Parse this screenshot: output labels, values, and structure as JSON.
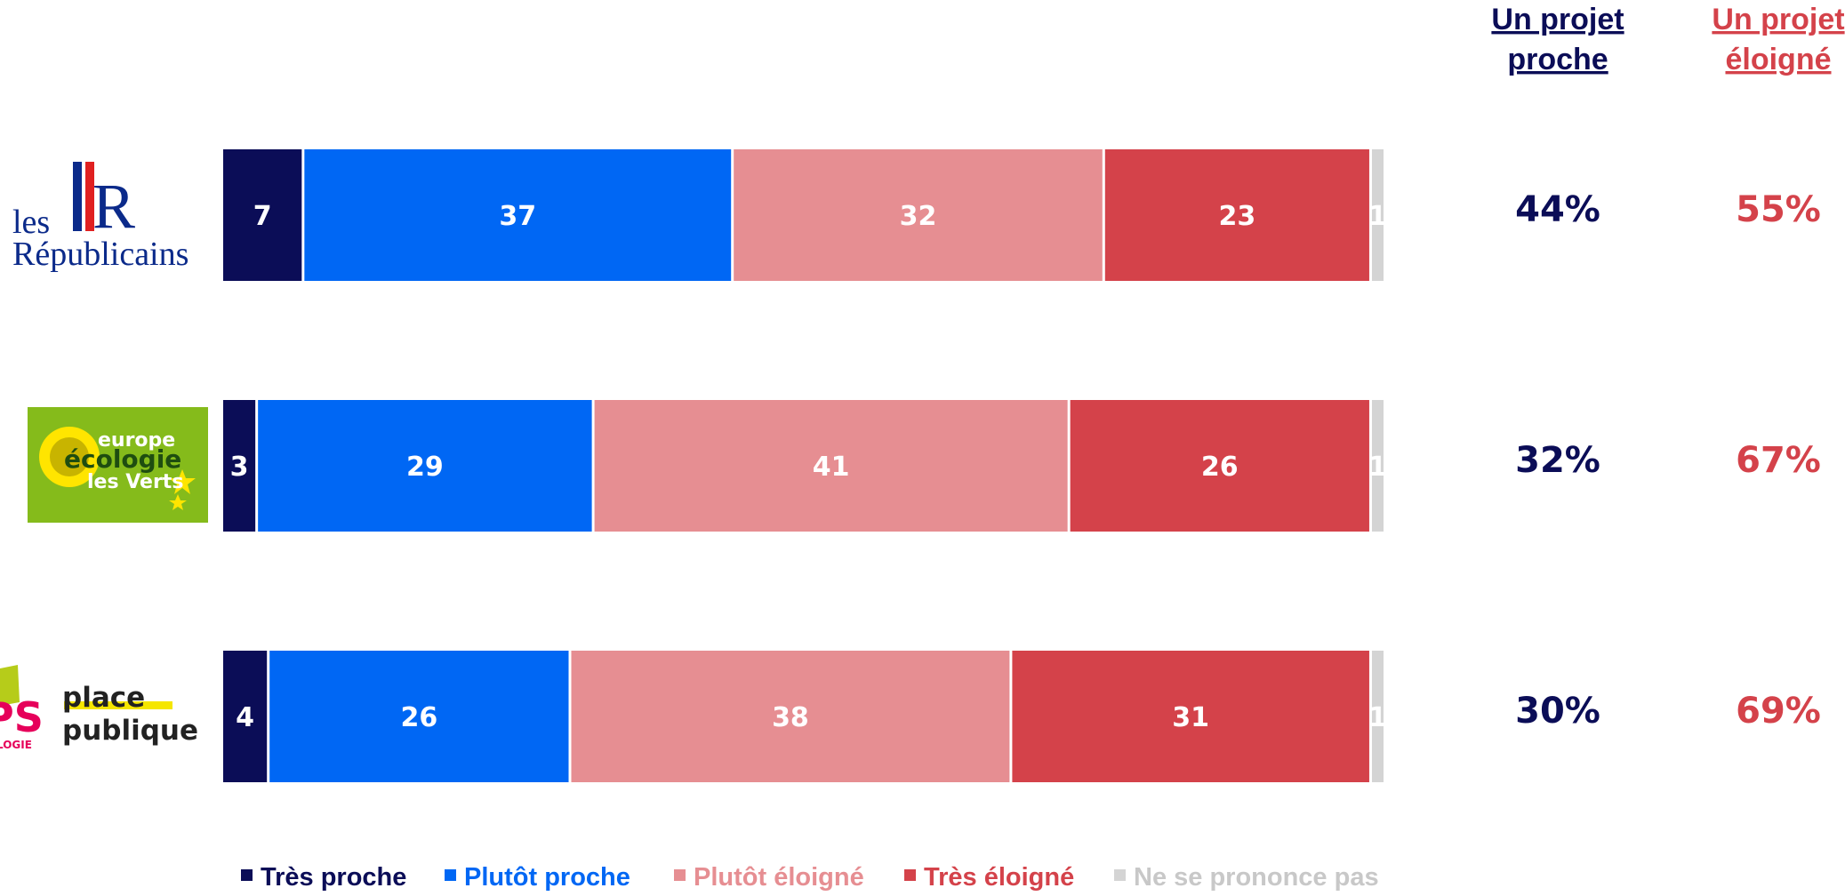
{
  "chart_data": {
    "type": "bar",
    "orientation": "horizontal",
    "stacked": true,
    "categories": [
      "les Républicains",
      "europe écologie les Verts",
      "PS place publique"
    ],
    "series": [
      {
        "name": "Très proche",
        "color": "#0b0d57",
        "values": [
          7,
          3,
          4
        ]
      },
      {
        "name": "Plutôt proche",
        "color": "#0067f4",
        "values": [
          37,
          29,
          26
        ]
      },
      {
        "name": "Plutôt éloigné",
        "color": "#e68e92",
        "values": [
          32,
          41,
          38
        ]
      },
      {
        "name": "Très éloigné",
        "color": "#d4424a",
        "values": [
          23,
          26,
          31
        ]
      },
      {
        "name": "Ne se prononce pas",
        "color": "#d4d4d4",
        "values": [
          1,
          1,
          1
        ]
      }
    ],
    "xlim": [
      0,
      100
    ],
    "grid": false,
    "legend": "bottom",
    "summary_columns": [
      {
        "header": [
          "Un projet",
          "proche"
        ],
        "color": "#0b0d57",
        "values": [
          "44%",
          "32%",
          "30%"
        ]
      },
      {
        "header": [
          "Un projet",
          "éloigné"
        ],
        "color": "#d4424a",
        "values": [
          "55%",
          "67%",
          "69%"
        ]
      }
    ]
  },
  "logos": {
    "lr": {
      "icon": "les-republicains-logo",
      "line1": "les",
      "letters": "LR",
      "line2": "Républicains"
    },
    "eelv": {
      "icon": "eelv-sunflower-logo",
      "line1": "europe",
      "line2": "écologie",
      "line3": "les Verts",
      "bg": "#85bb1b"
    },
    "ps": {
      "icon": "ps-place-publique-logo",
      "mark": "PS",
      "small": "LOGIE",
      "word1": "place",
      "word2": "publique"
    }
  }
}
